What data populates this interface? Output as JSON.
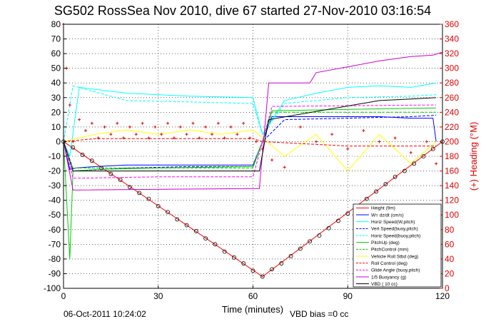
{
  "chart_data": {
    "type": "line",
    "title": "SG502 RossSea Nov 2010, dive 67 started 27-Nov-2010 03:16:54",
    "xlabel": "Time (minutes)",
    "ylabel_right": "(+) Heading (°M)",
    "xlim": [
      0,
      120
    ],
    "ylim": [
      -100,
      80
    ],
    "ylim_right": [
      0,
      360
    ],
    "x_ticks": [
      "0",
      "30",
      "60",
      "90",
      "120"
    ],
    "y_ticks": [
      "80",
      "70",
      "60",
      "50",
      "40",
      "30",
      "20",
      "10",
      "0",
      "-10",
      "-20",
      "-30",
      "-40",
      "-50",
      "-60",
      "-70",
      "-80",
      "-90",
      "-100"
    ],
    "y_ticks_right": [
      "360",
      "340",
      "320",
      "300",
      "280",
      "260",
      "240",
      "220",
      "200",
      "180",
      "160",
      "140",
      "120",
      "100",
      "80",
      "60",
      "40",
      "20",
      "0"
    ],
    "grid": true,
    "legend_position": "bottom-right",
    "footer_left": "06-Oct-2011 10:24:02",
    "footer_right": "VBD bias =0 cc",
    "series": [
      {
        "name": "Height (9m)",
        "color": "#ff0000",
        "style": "solid",
        "x": [
          0,
          63,
          120
        ],
        "y": [
          0,
          -92,
          0
        ]
      },
      {
        "name": "W= dz/dt (cm/s)",
        "color": "#0000ff",
        "style": "solid",
        "x": [
          0,
          2,
          4,
          10,
          20,
          30,
          40,
          50,
          60,
          63,
          66,
          80,
          90,
          100,
          110,
          117,
          118
        ],
        "y": [
          0,
          -19,
          -18,
          -17,
          -16,
          -16,
          -16,
          -16,
          -16,
          0,
          17,
          17,
          17,
          17,
          16,
          16,
          0
        ]
      },
      {
        "name": "Horiz Speed(W,pitch)",
        "color": "#00ffff",
        "style": "solid",
        "x": [
          0,
          2,
          5,
          20,
          40,
          60,
          63,
          70,
          80,
          90,
          100,
          110,
          118
        ],
        "y": [
          0,
          -10,
          37,
          33,
          31,
          30,
          5,
          28,
          33,
          37,
          38,
          37,
          40
        ]
      },
      {
        "name": "Vert Speed(buoy,pitch)",
        "color": "#0000ff",
        "style": "dashed",
        "x": [
          0,
          3,
          20,
          40,
          60,
          63,
          70,
          90,
          110,
          118
        ],
        "y": [
          0,
          -20,
          -18,
          -17,
          -17,
          0,
          15,
          16,
          17,
          18
        ]
      },
      {
        "name": "Horiz Speed(buoy,pitch)",
        "color": "#00ffff",
        "style": "dashed",
        "x": [
          0,
          3,
          20,
          40,
          60,
          63,
          70,
          90,
          110,
          118
        ],
        "y": [
          0,
          38,
          28,
          27,
          26,
          5,
          26,
          30,
          31,
          32
        ]
      },
      {
        "name": "PitchUp (deg)",
        "color": "#00cc00",
        "style": "solid",
        "x": [
          0,
          2,
          3,
          10,
          30,
          60,
          63,
          66,
          90,
          118
        ],
        "y": [
          0,
          -80,
          -20,
          -19,
          -18,
          -17,
          0,
          21,
          22,
          23
        ]
      },
      {
        "name": "PitchControl (mm)",
        "color": "#00cc00",
        "style": "dashed",
        "x": [
          0,
          3,
          30,
          60,
          63,
          66,
          118
        ],
        "y": [
          0,
          -18,
          -18,
          -18,
          0,
          20,
          20
        ]
      },
      {
        "name": "Vehicle Roll Stbd (deg)",
        "color": "#ffff00",
        "style": "solid",
        "x": [
          0,
          10,
          20,
          30,
          40,
          50,
          60,
          70,
          80,
          90,
          100,
          110,
          118
        ],
        "y": [
          0,
          5,
          8,
          5,
          8,
          5,
          8,
          -10,
          5,
          -20,
          5,
          -15,
          0
        ]
      },
      {
        "name": "Roll Control (deg)",
        "color": "#ff0000",
        "style": "dashed",
        "x": [
          0,
          10,
          30,
          60,
          63,
          90,
          118
        ],
        "y": [
          0,
          2,
          2,
          2,
          0,
          -3,
          -3
        ]
      },
      {
        "name": "Glide Angle (buoy,pitch)",
        "color": "#ff00ff",
        "style": "dashed",
        "x": [
          0,
          3,
          30,
          60,
          63,
          66,
          118
        ],
        "y": [
          0,
          -25,
          -24,
          -24,
          0,
          24,
          25
        ]
      },
      {
        "name": "1/5 Buoyancy (g)",
        "color": "#cc00cc",
        "style": "solid",
        "x": [
          0,
          3,
          60,
          62,
          65,
          78,
          80,
          90,
          100,
          110,
          117,
          120
        ],
        "y": [
          0,
          -33,
          -32,
          -32,
          40,
          40,
          47,
          51,
          55,
          58,
          59,
          61
        ]
      },
      {
        "name": "VBD ( 10 cc)",
        "color": "#000000",
        "style": "solid",
        "x": [
          0,
          3,
          60,
          62,
          65,
          100,
          110,
          118
        ],
        "y": [
          0,
          -20,
          -20,
          -20,
          15,
          28,
          29,
          30
        ]
      }
    ],
    "heading_series": {
      "color": "#e00000",
      "marker": "+",
      "x": [
        0,
        1,
        2,
        3,
        5,
        7,
        9,
        11,
        13,
        15,
        17,
        19,
        21,
        23,
        25,
        27,
        29,
        31,
        33,
        35,
        37,
        39,
        41,
        43,
        45,
        47,
        49,
        51,
        53,
        55,
        57,
        59,
        61,
        63,
        66,
        70,
        75,
        80,
        85,
        90,
        95,
        100,
        105,
        110,
        115,
        118
      ],
      "y": [
        360,
        300,
        250,
        200,
        230,
        215,
        225,
        205,
        220,
        210,
        225,
        205,
        220,
        210,
        225,
        205,
        220,
        210,
        225,
        205,
        220,
        210,
        225,
        205,
        220,
        210,
        225,
        205,
        220,
        210,
        225,
        205,
        200,
        190,
        175,
        165,
        220,
        200,
        210,
        190,
        215,
        200,
        205,
        185,
        200,
        170
      ]
    },
    "profile_markers": {
      "color": "#000000",
      "x": [
        0,
        3,
        6,
        9,
        12,
        15,
        18,
        21,
        24,
        27,
        30,
        33,
        36,
        39,
        42,
        45,
        48,
        51,
        54,
        57,
        60,
        63,
        66,
        69,
        72,
        75,
        78,
        81,
        84,
        87,
        90,
        93,
        96,
        99,
        102,
        105,
        108,
        111,
        114,
        117,
        120
      ],
      "y": [
        0,
        -4,
        -9,
        -13,
        -18,
        -22,
        -26,
        -31,
        -35,
        -39,
        -44,
        -48,
        -53,
        -57,
        -61,
        -66,
        -70,
        -75,
        -79,
        -83,
        -88,
        -92,
        -87,
        -83,
        -78,
        -73,
        -68,
        -64,
        -59,
        -54,
        -49,
        -44,
        -39,
        -34,
        -29,
        -24,
        -20,
        -15,
        -10,
        -5,
        0
      ]
    }
  }
}
